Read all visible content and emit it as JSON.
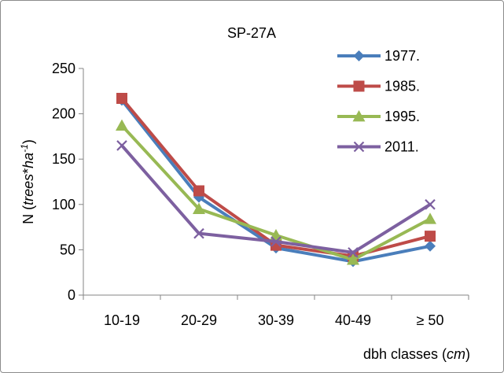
{
  "chart_data": {
    "type": "line",
    "title": "SP-27A",
    "categories": [
      "10-19",
      "20-29",
      "30-39",
      "40-49",
      "≥ 50"
    ],
    "ylim": [
      0,
      250
    ],
    "yticks": [
      0,
      50,
      100,
      150,
      200,
      250
    ],
    "ylabel": {
      "prefix": "N (",
      "italic_main": "trees",
      "operator": "*",
      "italic_unit": "ha",
      "superscript": "-1",
      "suffix": ")"
    },
    "xlabel": {
      "prefix": "dbh classes (",
      "italic_unit": "cm",
      "suffix": ")"
    },
    "legend_position": "top-right",
    "series": [
      {
        "name": "1977.",
        "color": "#4a7ebb",
        "marker": "diamond",
        "values": [
          215,
          108,
          52,
          37,
          54
        ]
      },
      {
        "name": "1985.",
        "color": "#be4b48",
        "marker": "square",
        "values": [
          217,
          115,
          55,
          43,
          65
        ]
      },
      {
        "name": "1995.",
        "color": "#98b954",
        "marker": "triangle",
        "values": [
          187,
          95,
          66,
          39,
          84
        ]
      },
      {
        "name": "2011.",
        "color": "#7d60a0",
        "marker": "x",
        "values": [
          165,
          68,
          59,
          47,
          100
        ]
      }
    ]
  }
}
